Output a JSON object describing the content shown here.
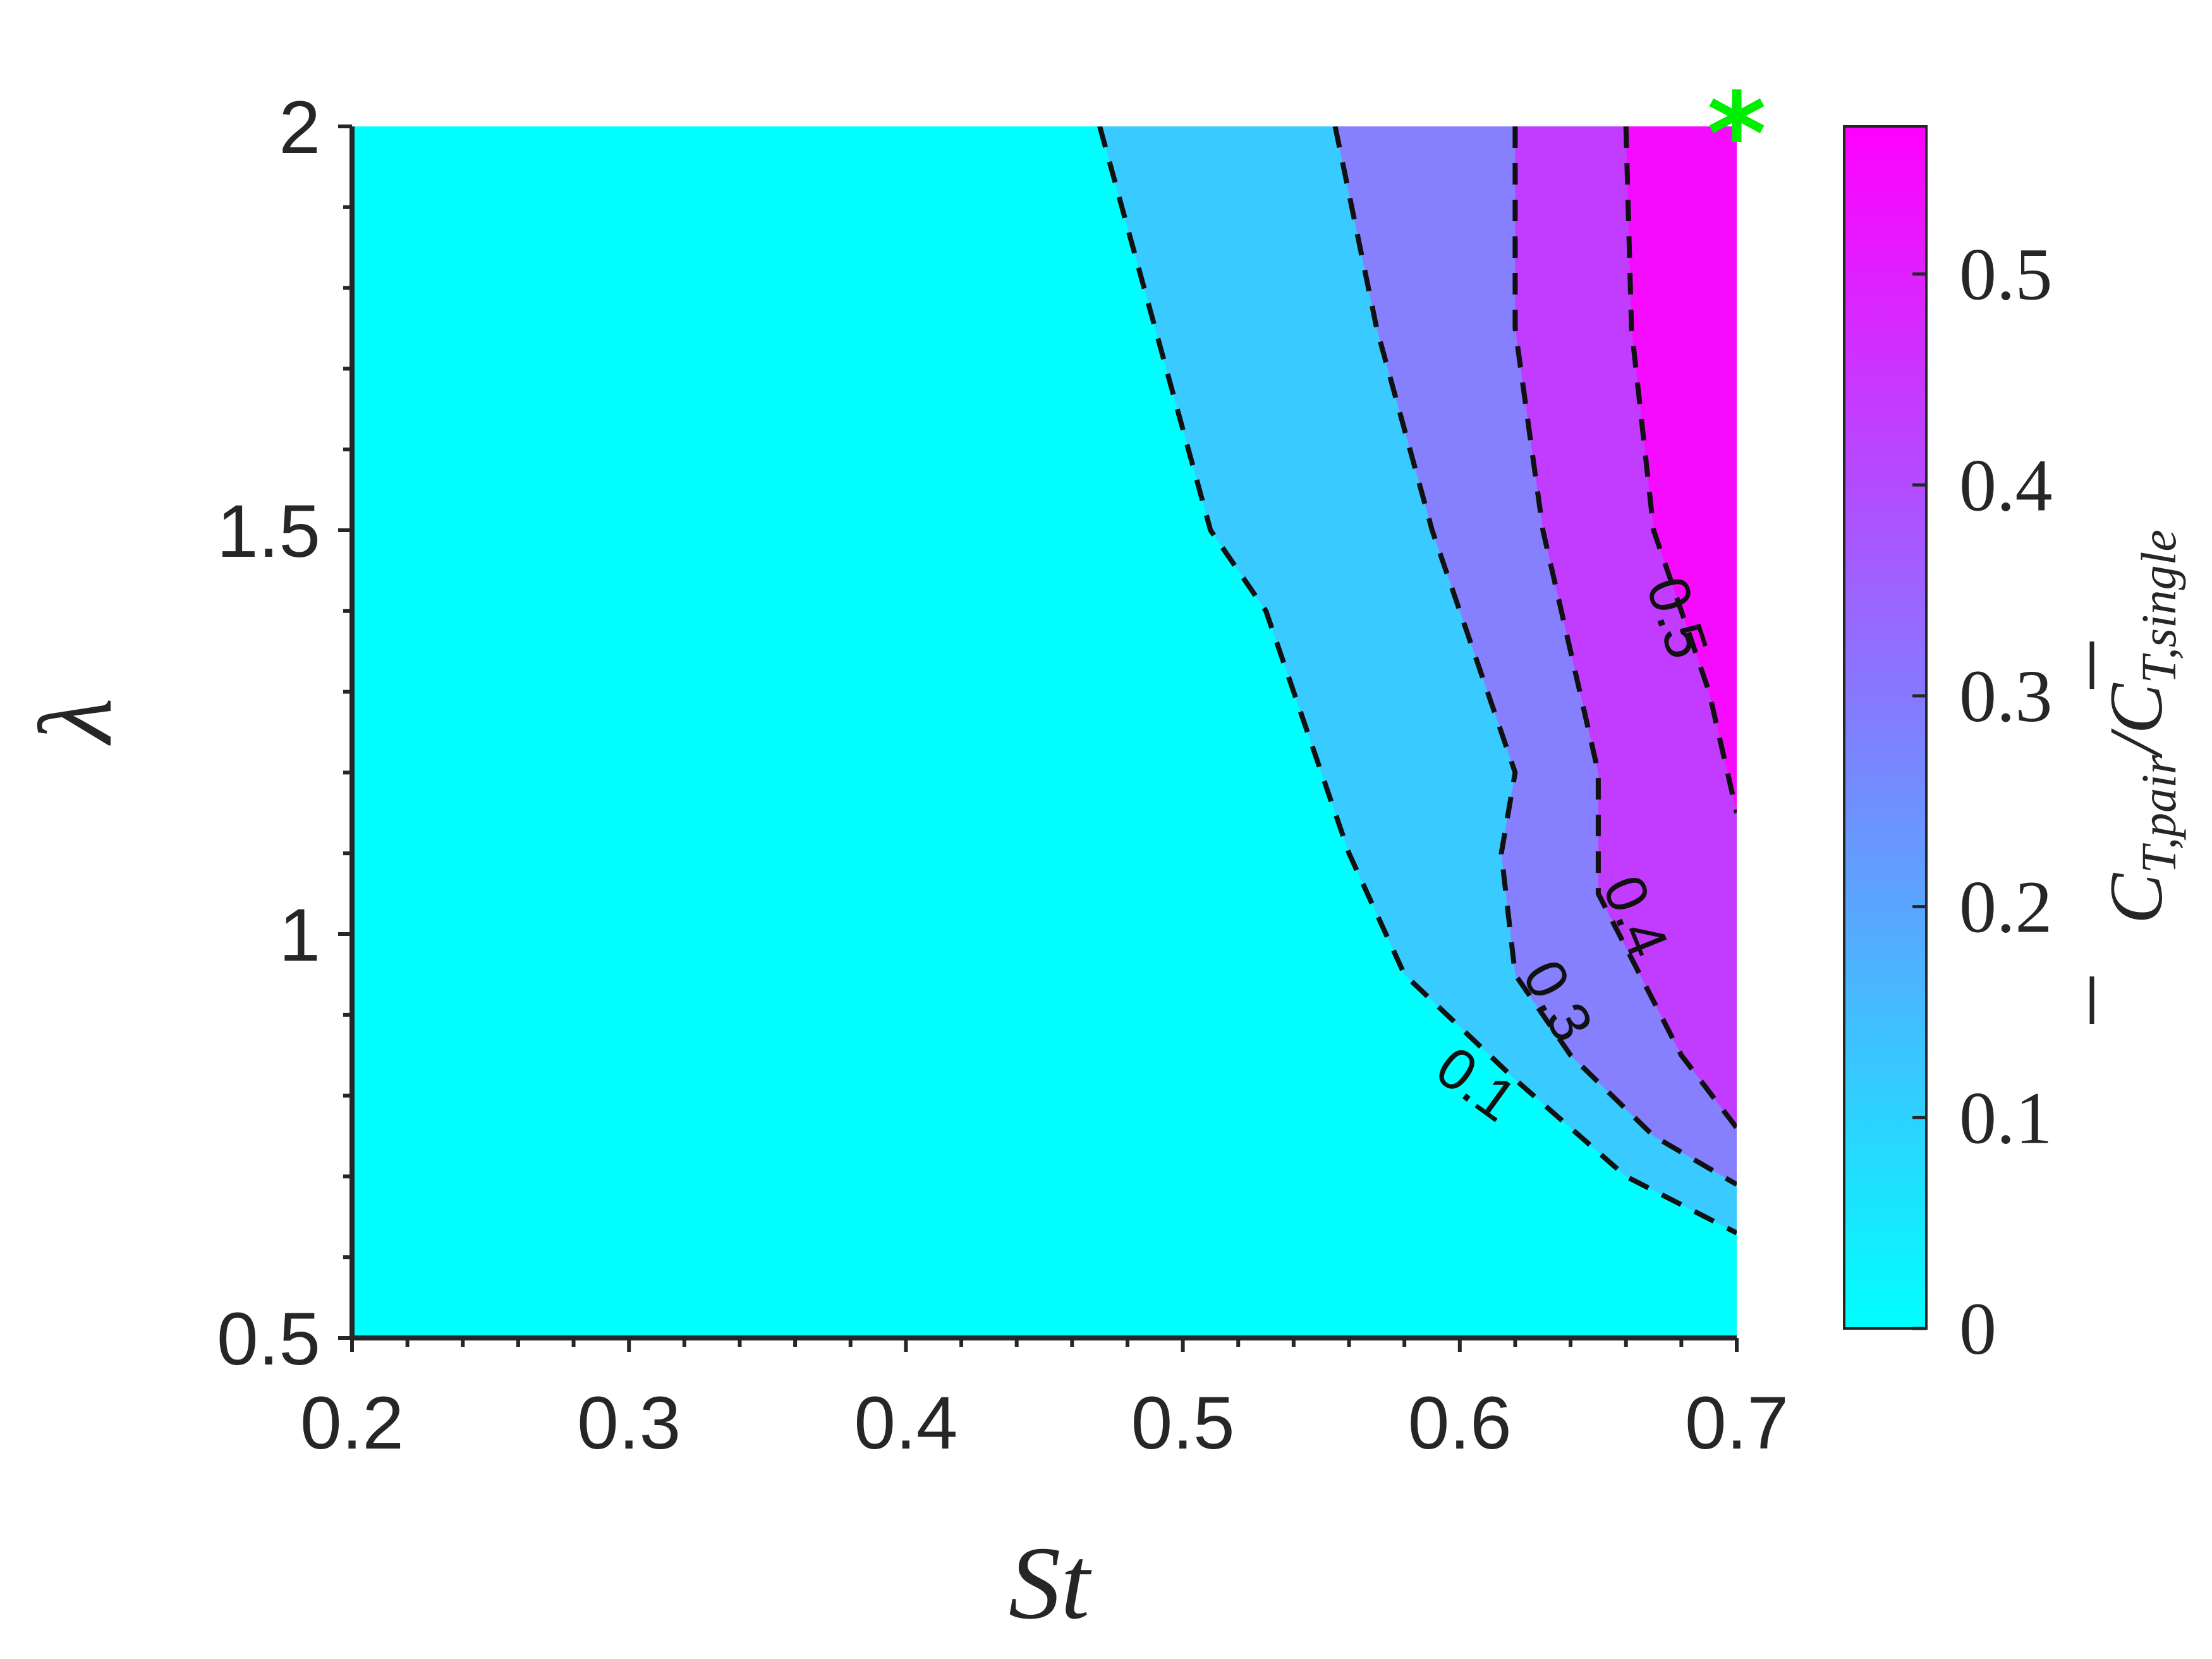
{
  "chart_data": {
    "type": "heatmap",
    "title": "",
    "xlabel": "St",
    "ylabel": "λ",
    "xlim": [
      0.2,
      0.7
    ],
    "ylim": [
      0.5,
      2
    ],
    "x_ticks": [
      0.2,
      0.3,
      0.4,
      0.5,
      0.6,
      0.7
    ],
    "x_tick_labels": [
      "0.2",
      "0.3",
      "0.4",
      "0.5",
      "0.6",
      "0.7"
    ],
    "y_ticks": [
      0.5,
      1,
      1.5,
      2
    ],
    "y_tick_labels": [
      "0.5",
      "1",
      "1.5",
      "2"
    ],
    "colorbar": {
      "label_main": "C",
      "label_sub_1": "T,pair",
      "label_sep": "/",
      "label_sub_2": "T,single",
      "range": [
        0,
        0.57
      ],
      "ticks": [
        0,
        0.1,
        0.2,
        0.3,
        0.4,
        0.5
      ],
      "tick_labels": [
        "0",
        "0.1",
        "0.2",
        "0.3",
        "0.4",
        "0.5"
      ],
      "colors": [
        "#00ffff",
        "#ff00ff"
      ]
    },
    "contours": [
      {
        "level": 0.1,
        "label": "0.1",
        "points": [
          [
            0.47,
            2.0
          ],
          [
            0.49,
            1.75
          ],
          [
            0.51,
            1.5
          ],
          [
            0.53,
            1.4
          ],
          [
            0.55,
            1.2
          ],
          [
            0.56,
            1.1
          ],
          [
            0.58,
            0.95
          ],
          [
            0.62,
            0.82
          ],
          [
            0.66,
            0.7
          ],
          [
            0.7,
            0.63
          ]
        ],
        "label_at": [
          0.605,
          0.81
        ],
        "label_angle": 36
      },
      {
        "level": 0.3,
        "label": "0.3",
        "points": [
          [
            0.555,
            2.0
          ],
          [
            0.57,
            1.75
          ],
          [
            0.59,
            1.5
          ],
          [
            0.6,
            1.4
          ],
          [
            0.61,
            1.3
          ],
          [
            0.62,
            1.2
          ],
          [
            0.615,
            1.1
          ],
          [
            0.62,
            0.95
          ],
          [
            0.64,
            0.85
          ],
          [
            0.67,
            0.75
          ],
          [
            0.7,
            0.69
          ]
        ],
        "label_at": [
          0.634,
          0.915
        ],
        "label_angle": 62
      },
      {
        "level": 0.4,
        "label": "0.4",
        "points": [
          [
            0.62,
            2.0
          ],
          [
            0.62,
            1.75
          ],
          [
            0.63,
            1.5
          ],
          [
            0.64,
            1.35
          ],
          [
            0.65,
            1.2
          ],
          [
            0.65,
            1.05
          ],
          [
            0.68,
            0.85
          ],
          [
            0.7,
            0.76
          ]
        ],
        "label_at": [
          0.662,
          1.02
        ],
        "label_angle": 68
      },
      {
        "level": 0.5,
        "label": "0.5",
        "points": [
          [
            0.66,
            2.0
          ],
          [
            0.662,
            1.75
          ],
          [
            0.67,
            1.5
          ],
          [
            0.69,
            1.3
          ],
          [
            0.7,
            1.15
          ]
        ],
        "label_at": [
          0.677,
          1.39
        ],
        "label_angle": 72
      }
    ],
    "marker": {
      "x": 0.7,
      "y": 2.0,
      "symbol": "*",
      "color": "#00ee00"
    }
  }
}
